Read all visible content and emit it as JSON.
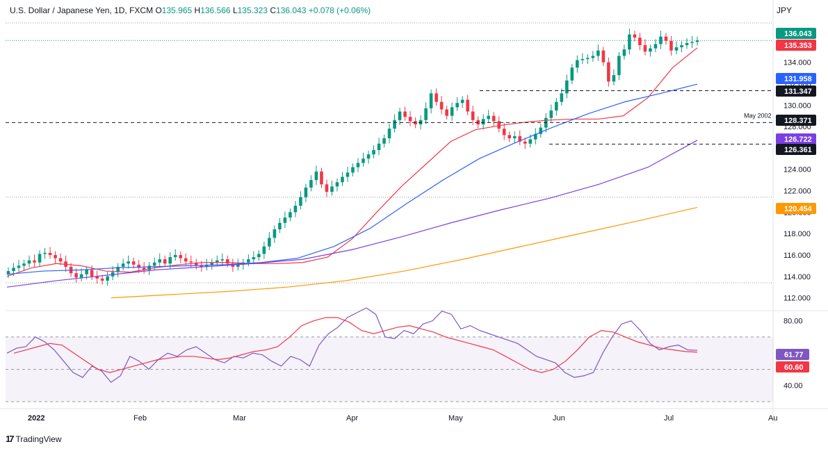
{
  "header": {
    "symbol": "U.S. Dollar / Japanese Yen, 1D, FXCM",
    "open_label": "O",
    "open": "135.965",
    "high_label": "H",
    "high": "136.566",
    "low_label": "L",
    "low": "135.323",
    "close_label": "C",
    "close": "136.043",
    "change": "+0.078 (+0.06%)"
  },
  "currency": "JPY",
  "brand": {
    "name": "TradingView",
    "icon": "tradingview-logo-icon"
  },
  "colors": {
    "up": "#089981",
    "down": "#f23645",
    "sma20": "#f23645",
    "sma50": "#2962ff",
    "sma100": "#7b3fe4",
    "sma200": "#ff9800",
    "rsi": "#7e57c2",
    "rsi_ma": "#f23645"
  },
  "chart_data": [
    {
      "type": "candlestick",
      "yaxis_ticks": [
        "134.000",
        "132.000",
        "130.000",
        "128.000",
        "126.000",
        "124.000",
        "122.000",
        "120.000",
        "118.000",
        "116.000",
        "114.000",
        "112.000"
      ],
      "ylim": [
        111,
        138
      ],
      "xaxis_ticks": [
        "2022",
        "Feb",
        "Mar",
        "Apr",
        "May",
        "Jun",
        "Jul",
        "Au"
      ],
      "price_badges": [
        {
          "value": "136.043",
          "color": "#089981"
        },
        {
          "value": "135.353",
          "color": "#f23645"
        },
        {
          "value": "131.958",
          "color": "#2962ff"
        },
        {
          "value": "131.347",
          "color": "#131722"
        },
        {
          "value": "128.371",
          "color": "#131722"
        },
        {
          "value": "126.722",
          "color": "#7b3fe4"
        },
        {
          "value": "126.361",
          "color": "#131722"
        },
        {
          "value": "120.454",
          "color": "#ff9800"
        }
      ],
      "annotation": "May 2002",
      "horizontal_levels": [
        131.347,
        128.371,
        126.361
      ],
      "closes": [
        114.5,
        114.8,
        115.0,
        115.2,
        115.5,
        115.3,
        116.1,
        116.2,
        116.0,
        115.7,
        115.4,
        114.9,
        114.3,
        113.9,
        114.2,
        114.6,
        114.0,
        113.8,
        113.6,
        114.0,
        114.4,
        114.9,
        115.2,
        115.4,
        115.1,
        114.8,
        114.6,
        115.0,
        115.3,
        115.6,
        115.2,
        115.8,
        116.0,
        115.7,
        115.4,
        115.3,
        115.0,
        114.9,
        115.1,
        115.3,
        115.5,
        115.6,
        115.2,
        114.9,
        115.1,
        115.3,
        115.6,
        115.8,
        116.1,
        116.8,
        117.6,
        118.4,
        119.0,
        119.5,
        120.0,
        120.6,
        121.4,
        122.3,
        123.0,
        123.8,
        122.6,
        121.9,
        122.4,
        122.8,
        123.3,
        123.7,
        124.2,
        124.6,
        125.0,
        125.4,
        125.8,
        126.4,
        126.9,
        127.8,
        128.6,
        129.4,
        128.9,
        128.5,
        128.2,
        128.6,
        129.7,
        131.1,
        130.3,
        129.6,
        129.0,
        129.8,
        130.2,
        130.5,
        129.4,
        128.6,
        128.2,
        128.7,
        129.0,
        128.5,
        127.8,
        127.2,
        126.9,
        127.1,
        126.6,
        126.4,
        126.8,
        127.3,
        127.9,
        128.8,
        129.5,
        130.3,
        131.1,
        132.3,
        133.5,
        134.2,
        134.3,
        134.4,
        134.6,
        135.1,
        134.0,
        132.2,
        132.8,
        134.6,
        135.2,
        136.6,
        136.3,
        135.6,
        135.0,
        135.3,
        135.7,
        136.4,
        136.0,
        135.1,
        135.4,
        135.6,
        135.8,
        135.9,
        136.04
      ],
      "sma20": [
        114.0,
        114.8,
        115.2,
        115.0,
        114.5,
        114.4,
        114.8,
        115.1,
        115.3,
        115.3,
        115.2,
        115.2,
        115.3,
        115.8,
        117.5,
        120.0,
        122.4,
        124.5,
        126.6,
        127.7,
        128.1,
        128.4,
        128.6,
        128.7,
        128.7,
        129.0,
        130.7,
        133.5,
        135.35
      ],
      "sma50": [
        114.2,
        114.5,
        114.6,
        114.8,
        114.9,
        115.0,
        115.1,
        115.3,
        115.7,
        116.8,
        118.5,
        120.8,
        123.0,
        125.0,
        126.5,
        127.9,
        129.2,
        130.3,
        131.1,
        131.96
      ],
      "sma100": [
        113.0,
        113.6,
        114.1,
        114.6,
        114.9,
        115.2,
        115.6,
        116.5,
        117.7,
        119.0,
        120.2,
        121.3,
        122.6,
        124.2,
        126.72
      ],
      "sma200": [
        112.0,
        112.3,
        112.6,
        113.0,
        113.6,
        114.5,
        115.6,
        116.8,
        118.0,
        119.2,
        120.45
      ],
      "series": [
        {
          "name": "",
          "role": "sma20"
        },
        {
          "name": "",
          "role": "sma50"
        },
        {
          "name": "",
          "role": "sma100"
        },
        {
          "name": "",
          "role": "sma200"
        }
      ]
    },
    {
      "type": "line",
      "panel": "rsi",
      "yaxis_ticks": [
        "80.00",
        "40.00"
      ],
      "ylim": [
        30,
        85
      ],
      "bands": [
        70,
        50,
        30
      ],
      "badges": [
        {
          "value": "61.77",
          "color": "#7e57c2"
        },
        {
          "value": "60.60",
          "color": "#f23645"
        }
      ],
      "rsi": [
        60,
        63,
        64,
        70,
        67,
        62,
        55,
        48,
        45,
        52,
        49,
        42,
        46,
        58,
        55,
        50,
        56,
        60,
        58,
        62,
        64,
        60,
        56,
        54,
        58,
        57,
        60,
        59,
        55,
        52,
        58,
        56,
        52,
        65,
        72,
        76,
        82,
        85,
        88,
        84,
        70,
        69,
        74,
        72,
        78,
        80,
        86,
        84,
        75,
        77,
        74,
        72,
        70,
        68,
        66,
        62,
        58,
        56,
        54,
        48,
        45,
        46,
        48,
        60,
        70,
        78,
        80,
        74,
        66,
        62,
        64,
        65,
        62,
        61.77
      ],
      "rsi_ma": [
        60,
        62,
        64,
        66,
        65,
        60,
        55,
        50,
        48,
        50,
        52,
        54,
        56,
        57,
        58,
        58,
        57,
        56,
        57,
        59,
        61,
        62,
        64,
        70,
        77,
        80,
        82,
        82,
        79,
        74,
        72,
        74,
        76,
        77,
        75,
        73,
        70,
        68,
        66,
        64,
        62,
        58,
        54,
        50,
        48,
        50,
        55,
        62,
        70,
        74,
        73,
        70,
        67,
        65,
        63,
        62,
        61,
        60.6
      ],
      "series": [
        {
          "name": "",
          "role": "rsi"
        },
        {
          "name": "",
          "role": "rsi_ma"
        }
      ]
    }
  ]
}
